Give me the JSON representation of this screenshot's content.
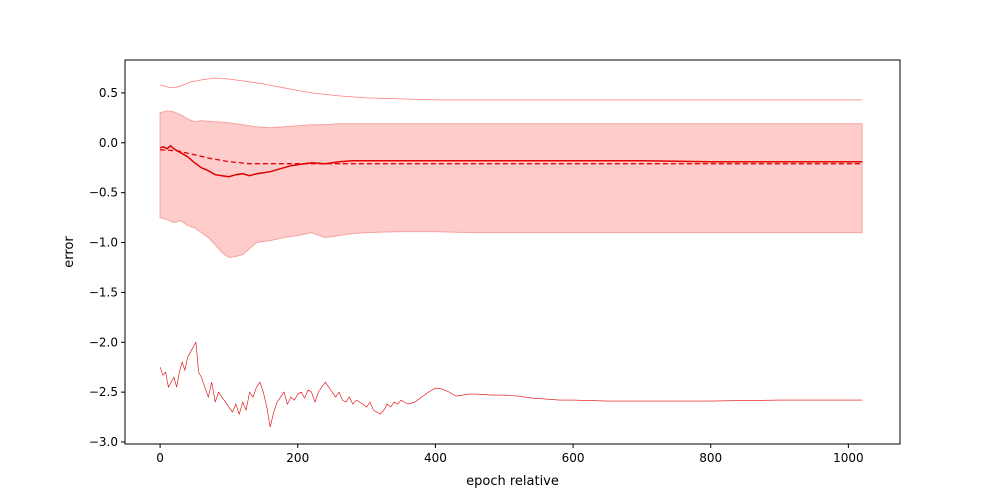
{
  "chart_data": {
    "type": "line",
    "title": "",
    "xlabel": "epoch relative",
    "ylabel": "error",
    "xlim": [
      -51,
      1075
    ],
    "ylim": [
      -3.02,
      0.83
    ],
    "xticks": [
      0,
      200,
      400,
      600,
      800,
      1000
    ],
    "yticks": [
      -3.0,
      -2.5,
      -2.0,
      -1.5,
      -1.0,
      -0.5,
      0.0,
      0.5
    ],
    "ytick_labels": [
      "−3.0",
      "−2.5",
      "−2.0",
      "−1.5",
      "−1.0",
      "−0.5",
      "0.0",
      "0.5"
    ],
    "grid": false,
    "colors": {
      "line": "#e00000",
      "band_fill": "#ffcccc",
      "band_edge": "#f4a3a3",
      "thin_line": "#ff7a7a"
    },
    "series": [
      {
        "role": "upper-envelope",
        "x": [
          0,
          10,
          20,
          30,
          45,
          60,
          80,
          100,
          120,
          150,
          180,
          220,
          260,
          300,
          350,
          400,
          450,
          500,
          600,
          700,
          800,
          900,
          1020
        ],
        "y": [
          0.58,
          0.56,
          0.55,
          0.57,
          0.61,
          0.63,
          0.65,
          0.64,
          0.62,
          0.59,
          0.55,
          0.5,
          0.47,
          0.45,
          0.44,
          0.43,
          0.43,
          0.43,
          0.43,
          0.43,
          0.43,
          0.43,
          0.43
        ]
      },
      {
        "role": "band-upper",
        "x": [
          0,
          10,
          20,
          30,
          40,
          50,
          60,
          80,
          100,
          120,
          140,
          160,
          180,
          200,
          220,
          240,
          260,
          280,
          300,
          350,
          400,
          450,
          500,
          600,
          700,
          800,
          900,
          1020
        ],
        "y": [
          0.3,
          0.32,
          0.31,
          0.28,
          0.24,
          0.21,
          0.22,
          0.21,
          0.2,
          0.18,
          0.16,
          0.15,
          0.16,
          0.17,
          0.18,
          0.18,
          0.19,
          0.19,
          0.19,
          0.19,
          0.19,
          0.19,
          0.19,
          0.19,
          0.19,
          0.19,
          0.19,
          0.19
        ]
      },
      {
        "role": "band-lower",
        "x": [
          0,
          10,
          20,
          30,
          40,
          50,
          60,
          70,
          80,
          90,
          100,
          110,
          120,
          130,
          140,
          160,
          180,
          200,
          220,
          240,
          260,
          280,
          300,
          350,
          400,
          450,
          500,
          600,
          700,
          800,
          900,
          1020
        ],
        "y": [
          -0.75,
          -0.77,
          -0.8,
          -0.78,
          -0.83,
          -0.85,
          -0.9,
          -0.95,
          -1.02,
          -1.1,
          -1.15,
          -1.14,
          -1.12,
          -1.06,
          -1.0,
          -0.98,
          -0.95,
          -0.93,
          -0.9,
          -0.95,
          -0.93,
          -0.91,
          -0.9,
          -0.89,
          -0.89,
          -0.9,
          -0.9,
          -0.9,
          -0.9,
          -0.9,
          -0.9,
          -0.9
        ]
      },
      {
        "role": "mean",
        "x": [
          0,
          5,
          10,
          15,
          20,
          25,
          30,
          40,
          50,
          60,
          70,
          80,
          90,
          100,
          110,
          120,
          130,
          140,
          150,
          160,
          170,
          180,
          190,
          200,
          210,
          220,
          240,
          260,
          280,
          300,
          350,
          400,
          450,
          500,
          600,
          700,
          800,
          900,
          1020
        ],
        "y": [
          -0.05,
          -0.04,
          -0.06,
          -0.03,
          -0.06,
          -0.08,
          -0.1,
          -0.14,
          -0.2,
          -0.25,
          -0.28,
          -0.32,
          -0.33,
          -0.34,
          -0.32,
          -0.31,
          -0.33,
          -0.31,
          -0.3,
          -0.29,
          -0.27,
          -0.25,
          -0.23,
          -0.22,
          -0.21,
          -0.2,
          -0.21,
          -0.19,
          -0.18,
          -0.18,
          -0.18,
          -0.18,
          -0.18,
          -0.18,
          -0.18,
          -0.18,
          -0.19,
          -0.19,
          -0.19
        ]
      },
      {
        "role": "trend",
        "x": [
          0,
          25,
          50,
          75,
          100,
          130,
          160,
          200,
          250,
          300,
          400,
          500,
          600,
          800,
          1020
        ],
        "y": [
          -0.07,
          -0.08,
          -0.12,
          -0.16,
          -0.19,
          -0.21,
          -0.21,
          -0.21,
          -0.21,
          -0.21,
          -0.21,
          -0.21,
          -0.21,
          -0.21,
          -0.21
        ]
      },
      {
        "role": "lower-envelope",
        "x": [
          0,
          4,
          8,
          12,
          16,
          20,
          24,
          28,
          32,
          36,
          40,
          44,
          48,
          52,
          56,
          60,
          65,
          70,
          75,
          80,
          85,
          90,
          95,
          100,
          105,
          110,
          115,
          120,
          125,
          130,
          135,
          140,
          145,
          150,
          155,
          160,
          165,
          170,
          175,
          180,
          185,
          190,
          195,
          200,
          205,
          210,
          215,
          220,
          225,
          230,
          235,
          240,
          245,
          250,
          255,
          260,
          265,
          270,
          275,
          280,
          285,
          290,
          295,
          300,
          305,
          310,
          315,
          320,
          325,
          330,
          335,
          340,
          345,
          350,
          360,
          370,
          380,
          390,
          400,
          410,
          420,
          430,
          440,
          450,
          460,
          480,
          500,
          520,
          540,
          560,
          580,
          600,
          650,
          700,
          750,
          800,
          900,
          1020
        ],
        "y": [
          -2.25,
          -2.33,
          -2.3,
          -2.45,
          -2.4,
          -2.35,
          -2.45,
          -2.3,
          -2.2,
          -2.28,
          -2.15,
          -2.1,
          -2.05,
          -2.0,
          -2.3,
          -2.35,
          -2.45,
          -2.55,
          -2.4,
          -2.6,
          -2.5,
          -2.55,
          -2.6,
          -2.65,
          -2.7,
          -2.62,
          -2.72,
          -2.6,
          -2.68,
          -2.5,
          -2.55,
          -2.45,
          -2.4,
          -2.5,
          -2.65,
          -2.85,
          -2.7,
          -2.6,
          -2.55,
          -2.5,
          -2.62,
          -2.55,
          -2.58,
          -2.52,
          -2.5,
          -2.56,
          -2.48,
          -2.5,
          -2.6,
          -2.5,
          -2.45,
          -2.4,
          -2.45,
          -2.5,
          -2.55,
          -2.5,
          -2.58,
          -2.6,
          -2.55,
          -2.62,
          -2.58,
          -2.6,
          -2.62,
          -2.65,
          -2.6,
          -2.68,
          -2.7,
          -2.72,
          -2.68,
          -2.62,
          -2.65,
          -2.6,
          -2.62,
          -2.58,
          -2.62,
          -2.6,
          -2.55,
          -2.5,
          -2.46,
          -2.47,
          -2.5,
          -2.54,
          -2.53,
          -2.52,
          -2.52,
          -2.53,
          -2.53,
          -2.54,
          -2.56,
          -2.57,
          -2.58,
          -2.58,
          -2.59,
          -2.59,
          -2.59,
          -2.59,
          -2.58,
          -2.58
        ]
      }
    ]
  }
}
